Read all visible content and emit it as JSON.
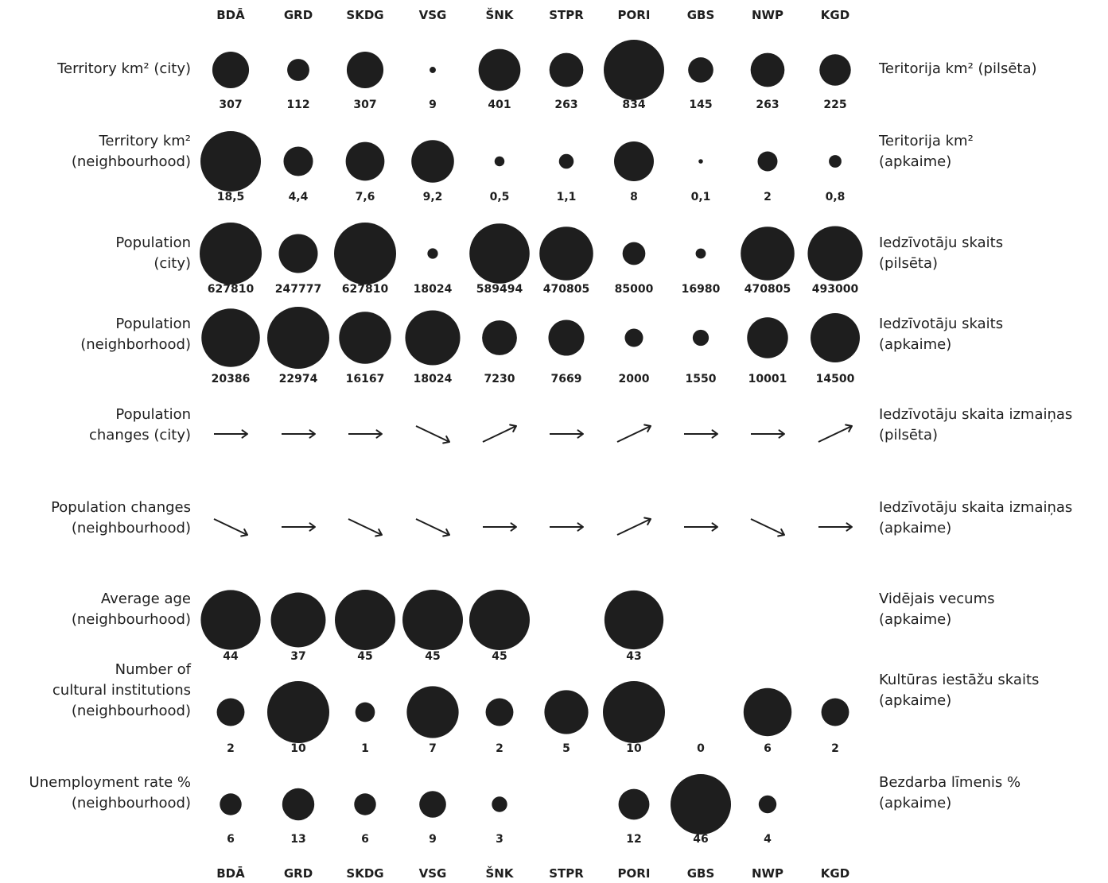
{
  "colors": {
    "ink": "#1e1e1e",
    "background": "#ffffff"
  },
  "chart_data": {
    "type": "bubble-matrix",
    "columns": [
      "BDĀ",
      "GRD",
      "SKDG",
      "VSG",
      "ŠNK",
      "STPR",
      "PORI",
      "GBS",
      "NWP",
      "KGD"
    ],
    "rows": [
      {
        "label_en": [
          "Territory km² (city)"
        ],
        "label_lv": [
          "Teritorija km² (pilsēta)"
        ],
        "kind": "bubble",
        "values": [
          307,
          112,
          307,
          9,
          401,
          263,
          834,
          145,
          263,
          225
        ],
        "labels": [
          "307",
          "112",
          "307",
          "9",
          "401",
          "263",
          "834",
          "145",
          "263",
          "225"
        ]
      },
      {
        "label_en": [
          "Territory km²",
          "(neighbourhood)"
        ],
        "label_lv": [
          "Teritorija km²",
          "(apkaime)"
        ],
        "kind": "bubble",
        "values": [
          18.5,
          4.4,
          7.6,
          9.2,
          0.5,
          1.1,
          8,
          0.1,
          2,
          0.8
        ],
        "labels": [
          "18,5",
          "4,4",
          "7,6",
          "9,2",
          "0,5",
          "1,1",
          "8",
          "0,1",
          "2",
          "0,8"
        ]
      },
      {
        "label_en": [
          "Population",
          "(city)"
        ],
        "label_lv": [
          "Iedzīvotāju skaits",
          "(pilsēta)"
        ],
        "kind": "bubble",
        "values": [
          627810,
          247777,
          627810,
          18024,
          589494,
          470805,
          85000,
          16980,
          470805,
          493000
        ],
        "labels": [
          "627810",
          "247777",
          "627810",
          "18024",
          "589494",
          "470805",
          "85000",
          "16980",
          "470805",
          "493000"
        ]
      },
      {
        "label_en": [
          "Population",
          "(neighborhood)"
        ],
        "label_lv": [
          "Iedzīvotāju skaits",
          "(apkaime)"
        ],
        "kind": "bubble",
        "values": [
          20386,
          22974,
          16167,
          18024,
          7230,
          7669,
          2000,
          1550,
          10001,
          14500
        ],
        "labels": [
          "20386",
          "22974",
          "16167",
          "18024",
          "7230",
          "7669",
          "2000",
          "1550",
          "10001",
          "14500"
        ]
      },
      {
        "label_en": [
          "Population",
          "changes (city)"
        ],
        "label_lv": [
          "Iedzīvotāju skaita izmaiņas",
          "(pilsēta)"
        ],
        "kind": "arrow",
        "values": [
          "flat",
          "flat",
          "flat",
          "down",
          "up",
          "flat",
          "up",
          "flat",
          "flat",
          "up"
        ]
      },
      {
        "label_en": [
          "Population changes",
          "(neighbourhood)"
        ],
        "label_lv": [
          "Iedzīvotāju skaita izmaiņas",
          "(apkaime)"
        ],
        "kind": "arrow",
        "values": [
          "down",
          "flat",
          "down",
          "down",
          "flat",
          "flat",
          "up",
          "flat",
          "down",
          "flat"
        ]
      },
      {
        "label_en": [
          "Average age",
          "(neighbourhood)"
        ],
        "label_lv": [
          "Vidējais vecums",
          "(apkaime)"
        ],
        "kind": "bubble",
        "values": [
          44,
          37,
          45,
          45,
          45,
          null,
          43,
          null,
          null,
          null
        ],
        "labels": [
          "44",
          "37",
          "45",
          "45",
          "45",
          "",
          "43",
          "",
          "",
          ""
        ]
      },
      {
        "label_en": [
          "Number of",
          "cultural institutions",
          "(neighbourhood)"
        ],
        "label_lv": [
          "Kultūras iestāžu skaits",
          "(apkaime)"
        ],
        "kind": "bubble",
        "values": [
          2,
          10,
          1,
          7,
          2,
          5,
          10,
          0,
          6,
          2
        ],
        "labels": [
          "2",
          "10",
          "1",
          "7",
          "2",
          "5",
          "10",
          "0",
          "6",
          "2"
        ]
      },
      {
        "label_en": [
          "Unemployment rate %",
          "(neighbourhood)"
        ],
        "label_lv": [
          "Bezdarba līmenis %",
          "(apkaime)"
        ],
        "kind": "bubble",
        "values": [
          6,
          13,
          6,
          9,
          3,
          null,
          12,
          46,
          4,
          null
        ],
        "labels": [
          "6",
          "13",
          "6",
          "9",
          "3",
          "",
          "12",
          "46",
          "4",
          ""
        ]
      }
    ]
  }
}
